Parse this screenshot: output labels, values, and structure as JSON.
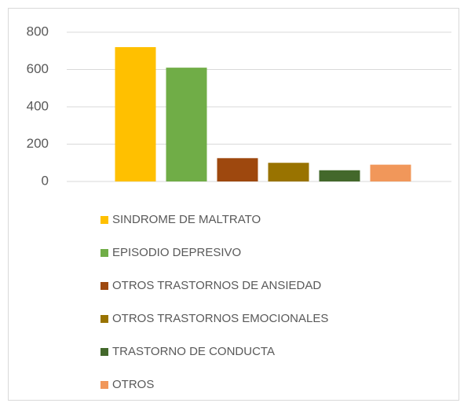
{
  "chart_data": {
    "type": "bar",
    "categories": [
      null
    ],
    "series": [
      {
        "name": "SINDROME DE MALTRATO",
        "color": "#FFC000",
        "values": [
          720
        ]
      },
      {
        "name": "EPISODIO DEPRESIVO",
        "color": "#70AD47",
        "values": [
          610
        ]
      },
      {
        "name": "OTROS TRASTORNOS DE ANSIEDAD",
        "color": "#9E480E",
        "values": [
          125
        ]
      },
      {
        "name": "OTROS TRASTORNOS EMOCIONALES",
        "color": "#997300",
        "values": [
          100
        ]
      },
      {
        "name": "TRASTORNO DE CONDUCTA",
        "color": "#43682B",
        "values": [
          60
        ]
      },
      {
        "name": "OTROS",
        "color": "#F1975A",
        "values": [
          90
        ]
      }
    ],
    "ylim": [
      0,
      800
    ],
    "yticks": [
      0,
      200,
      400,
      600,
      800
    ],
    "grid": true,
    "legend": "bottom"
  }
}
